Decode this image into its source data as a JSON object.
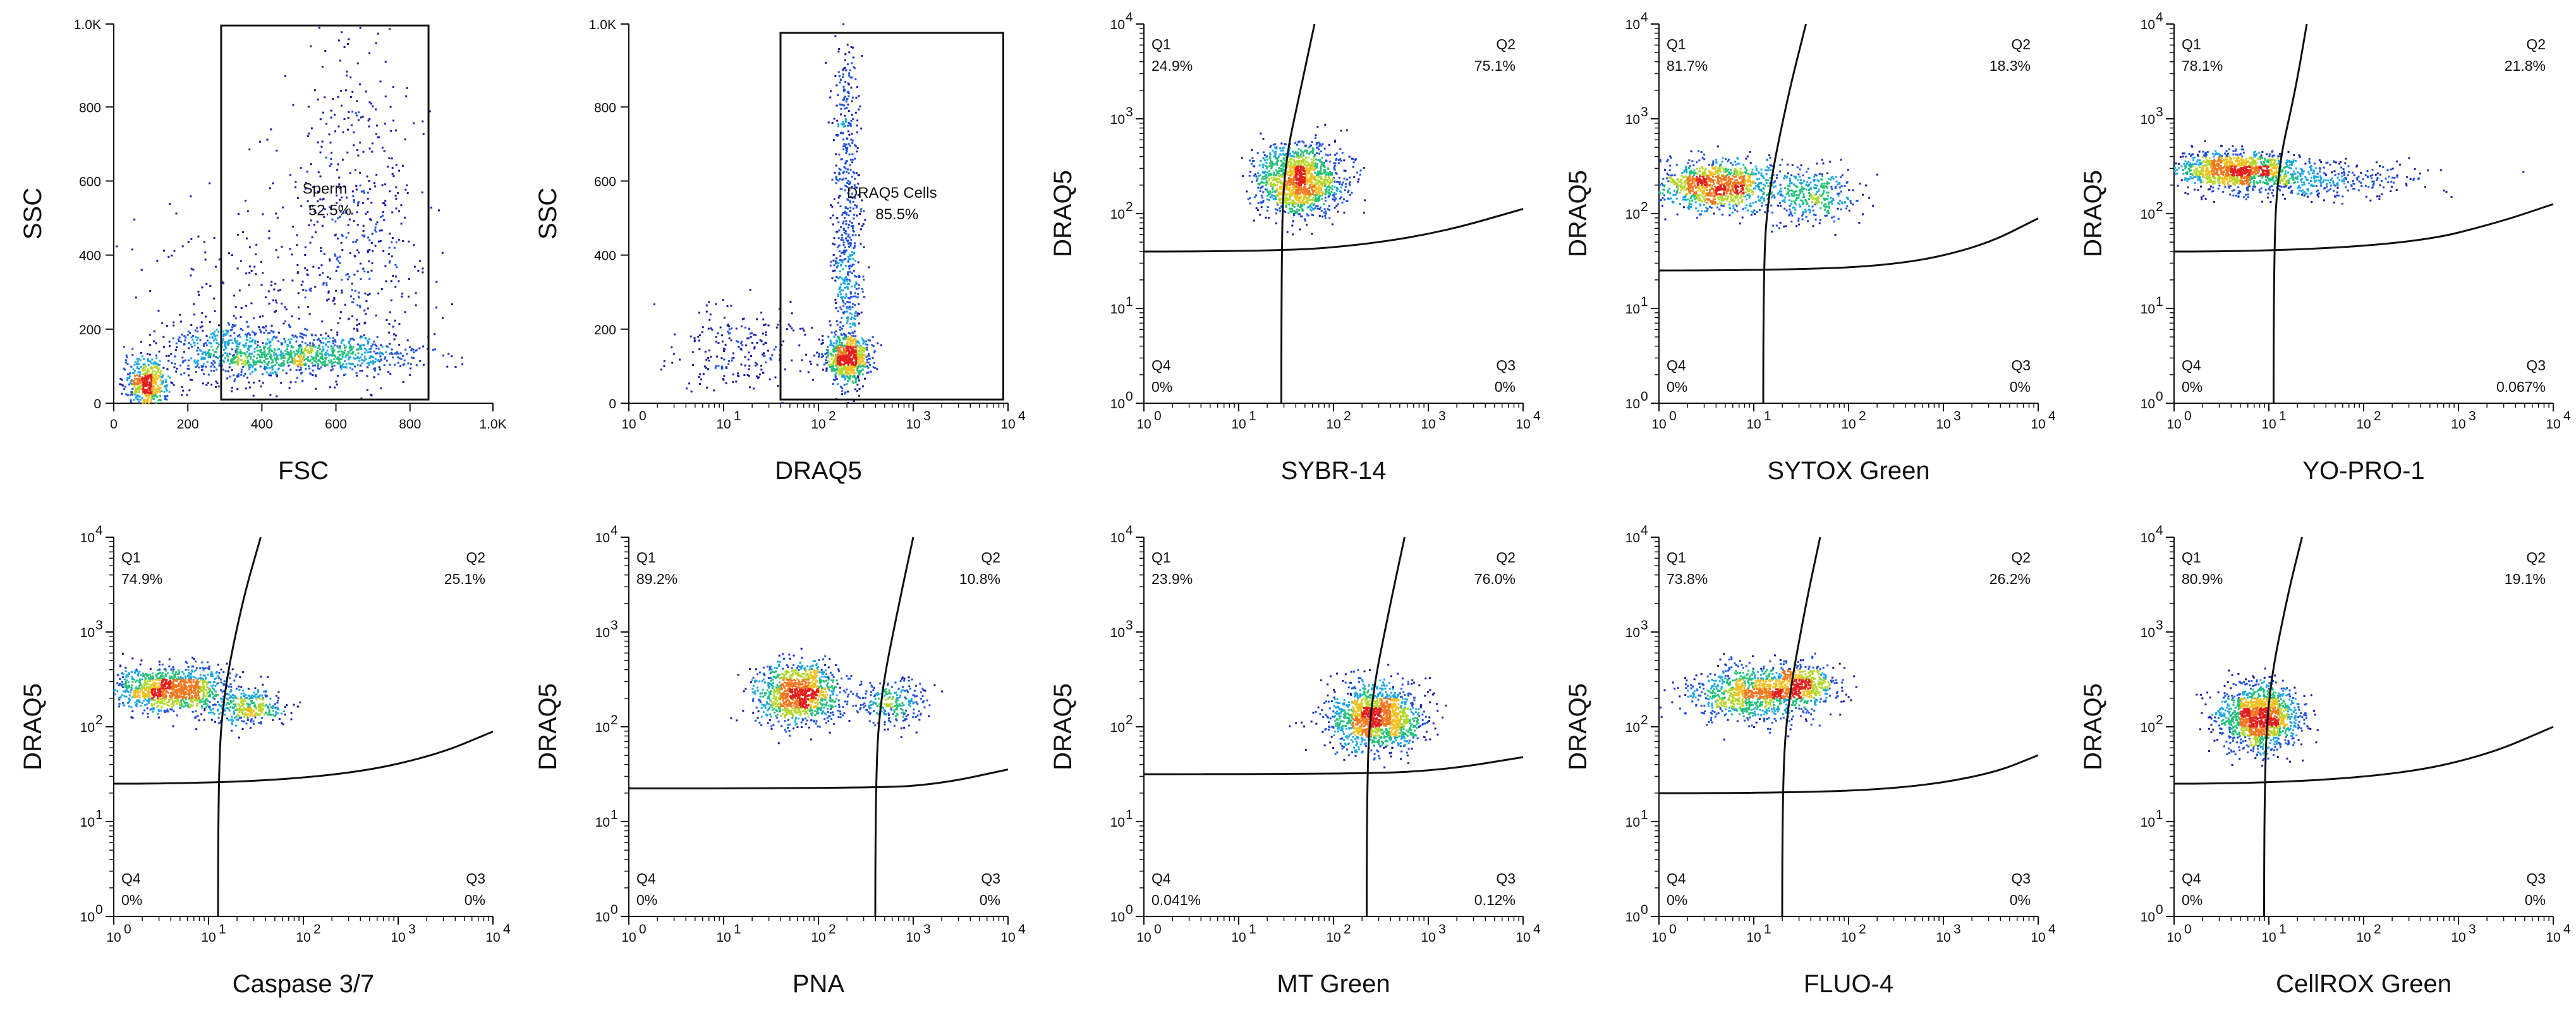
{
  "chart_data": [
    {
      "type": "scatter",
      "title": "",
      "xlabel": "FSC",
      "ylabel": "SSC",
      "x_scale": "linear",
      "y_scale": "linear",
      "xlim": [
        0,
        1024
      ],
      "ylim": [
        0,
        1024
      ],
      "x_ticks": [
        "0",
        "200",
        "400",
        "600",
        "800",
        "1.0K"
      ],
      "x_tick_values": [
        0,
        200,
        400,
        600,
        800,
        1024
      ],
      "y_ticks": [
        "0",
        "200",
        "400",
        "600",
        "800",
        "1.0K"
      ],
      "y_tick_values": [
        0,
        200,
        400,
        600,
        800,
        1024
      ],
      "gate": {
        "type": "rectangle",
        "name": "Sperm",
        "percent": "52.5%",
        "x_range": [
          290,
          850
        ],
        "y_range": [
          10,
          1020
        ]
      },
      "clusters": [
        {
          "cx": 90,
          "cy": 50,
          "sx": 30,
          "sy": 35,
          "n": 500
        },
        {
          "cx": 300,
          "cy": 140,
          "sx": 90,
          "sy": 45,
          "n": 450
        },
        {
          "cx": 560,
          "cy": 130,
          "sx": 130,
          "sy": 25,
          "n": 700
        },
        {
          "cx": 650,
          "cy": 520,
          "sx": 80,
          "sy": 230,
          "n": 420
        },
        {
          "cx": 420,
          "cy": 300,
          "sx": 200,
          "sy": 150,
          "n": 250
        }
      ],
      "x_label_color": "#111111"
    },
    {
      "type": "scatter",
      "title": "",
      "xlabel": "DRAQ5",
      "ylabel": "SSC",
      "x_scale": "log",
      "y_scale": "linear",
      "xlim": [
        0,
        4
      ],
      "ylim": [
        0,
        1024
      ],
      "x_ticks": [
        "10",
        "10",
        "10",
        "10",
        "10"
      ],
      "x_tick_exps": [
        "0",
        "1",
        "2",
        "3",
        "4"
      ],
      "x_tick_values": [
        0,
        1,
        2,
        3,
        4
      ],
      "y_ticks": [
        "0",
        "200",
        "400",
        "600",
        "800",
        "1.0K"
      ],
      "y_tick_values": [
        0,
        200,
        400,
        600,
        800,
        1024
      ],
      "gate": {
        "type": "rectangle",
        "name": "DRAQ5 Cells",
        "percent": "85.5%",
        "x_range": [
          1.6,
          3.95
        ],
        "y_range": [
          10,
          1000
        ]
      },
      "clusters": [
        {
          "cx": 2.3,
          "cy": 120,
          "sx": 0.12,
          "sy": 30,
          "n": 650
        },
        {
          "cx": 2.3,
          "cy": 400,
          "sx": 0.08,
          "sy": 230,
          "n": 550
        },
        {
          "cx": 1.2,
          "cy": 150,
          "sx": 0.35,
          "sy": 60,
          "n": 220
        },
        {
          "cx": 2.3,
          "cy": 800,
          "sx": 0.07,
          "sy": 100,
          "n": 90
        }
      ]
    },
    {
      "type": "scatter",
      "title": "",
      "xlabel": "SYBR-14",
      "ylabel": "DRAQ5",
      "x_scale": "log",
      "y_scale": "log",
      "xlim": [
        0,
        4
      ],
      "ylim": [
        0,
        4
      ],
      "x_ticks": [
        "10",
        "10",
        "10",
        "10",
        "10"
      ],
      "x_tick_exps": [
        "0",
        "1",
        "2",
        "3",
        "4"
      ],
      "x_tick_values": [
        0,
        1,
        2,
        3,
        4
      ],
      "y_ticks": [
        "10",
        "10",
        "10",
        "10",
        "10"
      ],
      "y_tick_exps": [
        "0",
        "1",
        "2",
        "3",
        "4"
      ],
      "y_tick_values": [
        0,
        1,
        2,
        3,
        4
      ],
      "quadrants": {
        "Q1": "24.9%",
        "Q2": "75.1%",
        "Q3": "0%",
        "Q4": "0%"
      },
      "quad_labels": [
        "Q1",
        "Q2",
        "Q3",
        "Q4"
      ],
      "quad_lines": {
        "vertical": [
          [
            1.45,
            0
          ],
          [
            1.45,
            1.6
          ],
          [
            1.48,
            2.5
          ],
          [
            1.65,
            3.3
          ],
          [
            1.8,
            4
          ]
        ],
        "horizontal": [
          [
            0,
            1.6
          ],
          [
            1.45,
            1.6
          ],
          [
            2.4,
            1.68
          ],
          [
            3.2,
            1.82
          ],
          [
            4,
            2.05
          ]
        ]
      },
      "clusters": [
        {
          "cx": 1.65,
          "cy": 2.35,
          "sx": 0.22,
          "sy": 0.18,
          "n": 1400
        }
      ]
    },
    {
      "type": "scatter",
      "title": "",
      "xlabel": "SYTOX Green",
      "ylabel": "DRAQ5",
      "x_scale": "log",
      "y_scale": "log",
      "xlim": [
        0,
        4
      ],
      "ylim": [
        0,
        4
      ],
      "x_ticks": [
        "10",
        "10",
        "10",
        "10",
        "10"
      ],
      "x_tick_exps": [
        "0",
        "1",
        "2",
        "3",
        "4"
      ],
      "x_tick_values": [
        0,
        1,
        2,
        3,
        4
      ],
      "y_ticks": [
        "10",
        "10",
        "10",
        "10",
        "10"
      ],
      "y_tick_exps": [
        "0",
        "1",
        "2",
        "3",
        "4"
      ],
      "y_tick_values": [
        0,
        1,
        2,
        3,
        4
      ],
      "quadrants": {
        "Q1": "81.7%",
        "Q2": "18.3%",
        "Q3": "0%",
        "Q4": "0%"
      },
      "quad_labels": [
        "Q1",
        "Q2",
        "Q3",
        "Q4"
      ],
      "quad_lines": {
        "vertical": [
          [
            1.1,
            0
          ],
          [
            1.1,
            1.4
          ],
          [
            1.15,
            2.2
          ],
          [
            1.35,
            3.2
          ],
          [
            1.55,
            4
          ]
        ],
        "horizontal": [
          [
            0,
            1.4
          ],
          [
            1.1,
            1.4
          ],
          [
            2.5,
            1.45
          ],
          [
            3.4,
            1.65
          ],
          [
            4,
            1.95
          ]
        ]
      },
      "clusters": [
        {
          "cx": 0.6,
          "cy": 2.3,
          "sx": 0.32,
          "sy": 0.13,
          "n": 1100
        },
        {
          "cx": 1.6,
          "cy": 2.2,
          "sx": 0.22,
          "sy": 0.14,
          "n": 350
        }
      ]
    },
    {
      "type": "scatter",
      "title": "",
      "xlabel": "YO-PRO-1",
      "ylabel": "DRAQ5",
      "x_scale": "log",
      "y_scale": "log",
      "xlim": [
        0,
        4
      ],
      "ylim": [
        0,
        4
      ],
      "x_ticks": [
        "10",
        "10",
        "10",
        "10",
        "10"
      ],
      "x_tick_exps": [
        "0",
        "1",
        "2",
        "3",
        "4"
      ],
      "x_tick_values": [
        0,
        1,
        2,
        3,
        4
      ],
      "y_ticks": [
        "10",
        "10",
        "10",
        "10",
        "10"
      ],
      "y_tick_exps": [
        "0",
        "1",
        "2",
        "3",
        "4"
      ],
      "y_tick_values": [
        0,
        1,
        2,
        3,
        4
      ],
      "quadrants": {
        "Q1": "78.1%",
        "Q2": "21.8%",
        "Q3": "0.067%",
        "Q4": "0%"
      },
      "quad_labels": [
        "Q1",
        "Q2",
        "Q3",
        "Q4"
      ],
      "quad_lines": {
        "vertical": [
          [
            1.05,
            0
          ],
          [
            1.05,
            1.6
          ],
          [
            1.1,
            2.5
          ],
          [
            1.28,
            3.3
          ],
          [
            1.4,
            4
          ]
        ],
        "horizontal": [
          [
            0,
            1.6
          ],
          [
            1.05,
            1.6
          ],
          [
            2.6,
            1.7
          ],
          [
            3.4,
            1.9
          ],
          [
            4,
            2.1
          ]
        ]
      },
      "clusters": [
        {
          "cx": 0.65,
          "cy": 2.45,
          "sx": 0.32,
          "sy": 0.1,
          "n": 1100
        },
        {
          "cx": 1.5,
          "cy": 2.35,
          "sx": 0.55,
          "sy": 0.1,
          "n": 380
        }
      ]
    },
    {
      "type": "scatter",
      "title": "",
      "xlabel": "Caspase 3/7",
      "ylabel": "DRAQ5",
      "x_scale": "log",
      "y_scale": "log",
      "xlim": [
        0,
        4
      ],
      "ylim": [
        0,
        4
      ],
      "x_ticks": [
        "10",
        "10",
        "10",
        "10",
        "10"
      ],
      "x_tick_exps": [
        "0",
        "1",
        "2",
        "3",
        "4"
      ],
      "x_tick_values": [
        0,
        1,
        2,
        3,
        4
      ],
      "y_ticks": [
        "10",
        "10",
        "10",
        "10",
        "10"
      ],
      "y_tick_exps": [
        "0",
        "1",
        "2",
        "3",
        "4"
      ],
      "y_tick_values": [
        0,
        1,
        2,
        3,
        4
      ],
      "quadrants": {
        "Q1": "74.9%",
        "Q2": "25.1%",
        "Q3": "0%",
        "Q4": "0%"
      },
      "quad_labels": [
        "Q1",
        "Q2",
        "Q3",
        "Q4"
      ],
      "quad_lines": {
        "vertical": [
          [
            1.1,
            0
          ],
          [
            1.1,
            1.4
          ],
          [
            1.15,
            2.3
          ],
          [
            1.35,
            3.3
          ],
          [
            1.55,
            4
          ]
        ],
        "horizontal": [
          [
            0,
            1.4
          ],
          [
            1.1,
            1.4
          ],
          [
            2.5,
            1.5
          ],
          [
            3.4,
            1.7
          ],
          [
            4,
            1.95
          ]
        ]
      },
      "clusters": [
        {
          "cx": 0.6,
          "cy": 2.4,
          "sx": 0.3,
          "sy": 0.12,
          "n": 1100
        },
        {
          "cx": 1.4,
          "cy": 2.2,
          "sx": 0.2,
          "sy": 0.1,
          "n": 350
        }
      ]
    },
    {
      "type": "scatter",
      "title": "",
      "xlabel": "PNA",
      "ylabel": "DRAQ5",
      "x_scale": "log",
      "y_scale": "log",
      "xlim": [
        0,
        4
      ],
      "ylim": [
        0,
        4
      ],
      "x_ticks": [
        "10",
        "10",
        "10",
        "10",
        "10"
      ],
      "x_tick_exps": [
        "0",
        "1",
        "2",
        "3",
        "4"
      ],
      "x_tick_values": [
        0,
        1,
        2,
        3,
        4
      ],
      "y_ticks": [
        "10",
        "10",
        "10",
        "10",
        "10"
      ],
      "y_tick_exps": [
        "0",
        "1",
        "2",
        "3",
        "4"
      ],
      "y_tick_values": [
        0,
        1,
        2,
        3,
        4
      ],
      "quadrants": {
        "Q1": "89.2%",
        "Q2": "10.8%",
        "Q3": "0%",
        "Q4": "0%"
      },
      "quad_labels": [
        "Q1",
        "Q2",
        "Q3",
        "Q4"
      ],
      "quad_lines": {
        "vertical": [
          [
            2.6,
            0
          ],
          [
            2.6,
            1.35
          ],
          [
            2.65,
            2.3
          ],
          [
            2.85,
            3.3
          ],
          [
            3.0,
            4
          ]
        ],
        "horizontal": [
          [
            0,
            1.35
          ],
          [
            2.6,
            1.35
          ],
          [
            3.3,
            1.4
          ],
          [
            4,
            1.55
          ]
        ]
      },
      "clusters": [
        {
          "cx": 1.8,
          "cy": 2.35,
          "sx": 0.22,
          "sy": 0.15,
          "n": 1100
        },
        {
          "cx": 2.8,
          "cy": 2.25,
          "sx": 0.18,
          "sy": 0.12,
          "n": 250
        }
      ]
    },
    {
      "type": "scatter",
      "title": "",
      "xlabel": "MT Green",
      "ylabel": "DRAQ5",
      "x_scale": "log",
      "y_scale": "log",
      "xlim": [
        0,
        4
      ],
      "ylim": [
        0,
        4
      ],
      "x_ticks": [
        "10",
        "10",
        "10",
        "10",
        "10"
      ],
      "x_tick_exps": [
        "0",
        "1",
        "2",
        "3",
        "4"
      ],
      "x_tick_values": [
        0,
        1,
        2,
        3,
        4
      ],
      "y_ticks": [
        "10",
        "10",
        "10",
        "10",
        "10"
      ],
      "y_tick_exps": [
        "0",
        "1",
        "2",
        "3",
        "4"
      ],
      "y_tick_values": [
        0,
        1,
        2,
        3,
        4
      ],
      "quadrants": {
        "Q1": "23.9%",
        "Q2": "76.0%",
        "Q3": "0.12%",
        "Q4": "0.041%"
      },
      "quad_labels": [
        "Q1",
        "Q2",
        "Q3",
        "Q4"
      ],
      "quad_lines": {
        "vertical": [
          [
            2.35,
            0
          ],
          [
            2.35,
            1.5
          ],
          [
            2.4,
            2.3
          ],
          [
            2.6,
            3.3
          ],
          [
            2.75,
            4
          ]
        ],
        "horizontal": [
          [
            0,
            1.5
          ],
          [
            2.35,
            1.5
          ],
          [
            3.2,
            1.55
          ],
          [
            4,
            1.68
          ]
        ]
      },
      "clusters": [
        {
          "cx": 2.45,
          "cy": 2.1,
          "sx": 0.24,
          "sy": 0.17,
          "n": 1400
        }
      ]
    },
    {
      "type": "scatter",
      "title": "",
      "xlabel": "FLUO-4",
      "ylabel": "DRAQ5",
      "x_scale": "log",
      "y_scale": "log",
      "xlim": [
        0,
        4
      ],
      "ylim": [
        0,
        4
      ],
      "x_ticks": [
        "10",
        "10",
        "10",
        "10",
        "10"
      ],
      "x_tick_exps": [
        "0",
        "1",
        "2",
        "3",
        "4"
      ],
      "x_tick_values": [
        0,
        1,
        2,
        3,
        4
      ],
      "y_ticks": [
        "10",
        "10",
        "10",
        "10",
        "10"
      ],
      "y_tick_exps": [
        "0",
        "1",
        "2",
        "3",
        "4"
      ],
      "y_tick_values": [
        0,
        1,
        2,
        3,
        4
      ],
      "quadrants": {
        "Q1": "73.8%",
        "Q2": "26.2%",
        "Q3": "0%",
        "Q4": "0%"
      },
      "quad_labels": [
        "Q1",
        "Q2",
        "Q3",
        "Q4"
      ],
      "quad_lines": {
        "vertical": [
          [
            1.3,
            0
          ],
          [
            1.3,
            1.3
          ],
          [
            1.35,
            2.2
          ],
          [
            1.55,
            3.3
          ],
          [
            1.7,
            4
          ]
        ],
        "horizontal": [
          [
            0,
            1.3
          ],
          [
            1.3,
            1.3
          ],
          [
            2.6,
            1.35
          ],
          [
            3.5,
            1.5
          ],
          [
            4,
            1.7
          ]
        ]
      },
      "clusters": [
        {
          "cx": 1.0,
          "cy": 2.35,
          "sx": 0.35,
          "sy": 0.14,
          "n": 1000
        },
        {
          "cx": 1.5,
          "cy": 2.45,
          "sx": 0.18,
          "sy": 0.1,
          "n": 400
        }
      ]
    },
    {
      "type": "scatter",
      "title": "",
      "xlabel": "CellROX Green",
      "ylabel": "DRAQ5",
      "x_scale": "log",
      "y_scale": "log",
      "xlim": [
        0,
        4
      ],
      "ylim": [
        0,
        4
      ],
      "x_ticks": [
        "10",
        "10",
        "10",
        "10",
        "10"
      ],
      "x_tick_exps": [
        "0",
        "1",
        "2",
        "3",
        "4"
      ],
      "x_tick_values": [
        0,
        1,
        2,
        3,
        4
      ],
      "y_ticks": [
        "10",
        "10",
        "10",
        "10",
        "10"
      ],
      "y_tick_exps": [
        "0",
        "1",
        "2",
        "3",
        "4"
      ],
      "y_tick_values": [
        0,
        1,
        2,
        3,
        4
      ],
      "quadrants": {
        "Q1": "80.9%",
        "Q2": "19.1%",
        "Q3": "0%",
        "Q4": "0%"
      },
      "quad_labels": [
        "Q1",
        "Q2",
        "Q3",
        "Q4"
      ],
      "quad_lines": {
        "vertical": [
          [
            0.95,
            0
          ],
          [
            0.95,
            1.4
          ],
          [
            1.0,
            2.4
          ],
          [
            1.2,
            3.4
          ],
          [
            1.35,
            4
          ]
        ],
        "horizontal": [
          [
            0,
            1.4
          ],
          [
            0.95,
            1.4
          ],
          [
            2.4,
            1.5
          ],
          [
            3.3,
            1.7
          ],
          [
            4,
            2.0
          ]
        ]
      },
      "clusters": [
        {
          "cx": 0.9,
          "cy": 2.1,
          "sx": 0.2,
          "sy": 0.17,
          "n": 1400
        }
      ]
    }
  ],
  "colors": {
    "density": [
      "#1a1aa0",
      "#1f4fd8",
      "#1aa7e0",
      "#22c07a",
      "#b5d62a",
      "#f0c020",
      "#f07820",
      "#e02020"
    ],
    "axis": "#111111",
    "gate": "#111111",
    "background": "#ffffff"
  }
}
